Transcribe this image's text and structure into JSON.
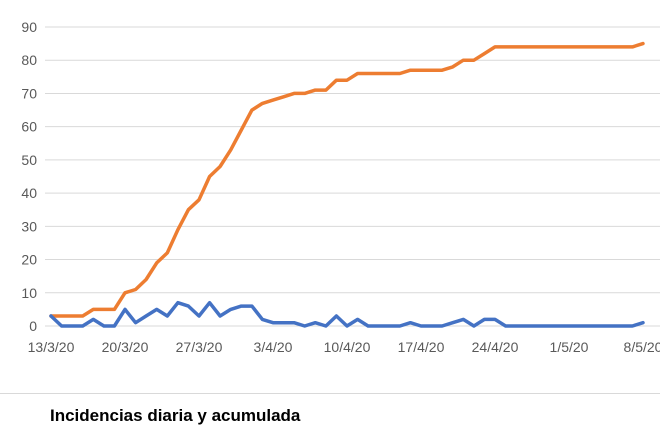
{
  "caption": "Incidencias diaria y acumulada",
  "chart_data": {
    "type": "line",
    "title": "",
    "xlabel": "",
    "ylabel": "",
    "ylim": [
      0,
      90
    ],
    "y_ticks": [
      0,
      10,
      20,
      30,
      40,
      50,
      60,
      70,
      80,
      90
    ],
    "x_tick_labels": [
      "13/3/20",
      "20/3/20",
      "27/3/20",
      "3/4/20",
      "10/4/20",
      "17/4/20",
      "24/4/20",
      "1/5/20",
      "8/5/20"
    ],
    "grid": "horizontal",
    "legend": "none",
    "x_start": "13/3/20",
    "x_end": "8/5/20",
    "series": [
      {
        "color": "#ED7D31",
        "values": [
          3,
          3,
          3,
          3,
          5,
          5,
          5,
          10,
          11,
          14,
          19,
          22,
          29,
          35,
          38,
          45,
          48,
          53,
          59,
          65,
          67,
          68,
          69,
          70,
          70,
          71,
          71,
          74,
          74,
          76,
          76,
          76,
          76,
          76,
          77,
          77,
          77,
          77,
          78,
          80,
          80,
          82,
          84,
          84,
          84,
          84,
          84,
          84,
          84,
          84,
          84,
          84,
          84,
          84,
          84,
          84,
          85
        ]
      },
      {
        "color": "#4472C4",
        "values": [
          3,
          0,
          0,
          0,
          2,
          0,
          0,
          5,
          1,
          3,
          5,
          3,
          7,
          6,
          3,
          7,
          3,
          5,
          6,
          6,
          2,
          1,
          1,
          1,
          0,
          1,
          0,
          3,
          0,
          2,
          0,
          0,
          0,
          0,
          1,
          0,
          0,
          0,
          1,
          2,
          0,
          2,
          2,
          0,
          0,
          0,
          0,
          0,
          0,
          0,
          0,
          0,
          0,
          0,
          0,
          0,
          1
        ]
      }
    ]
  }
}
